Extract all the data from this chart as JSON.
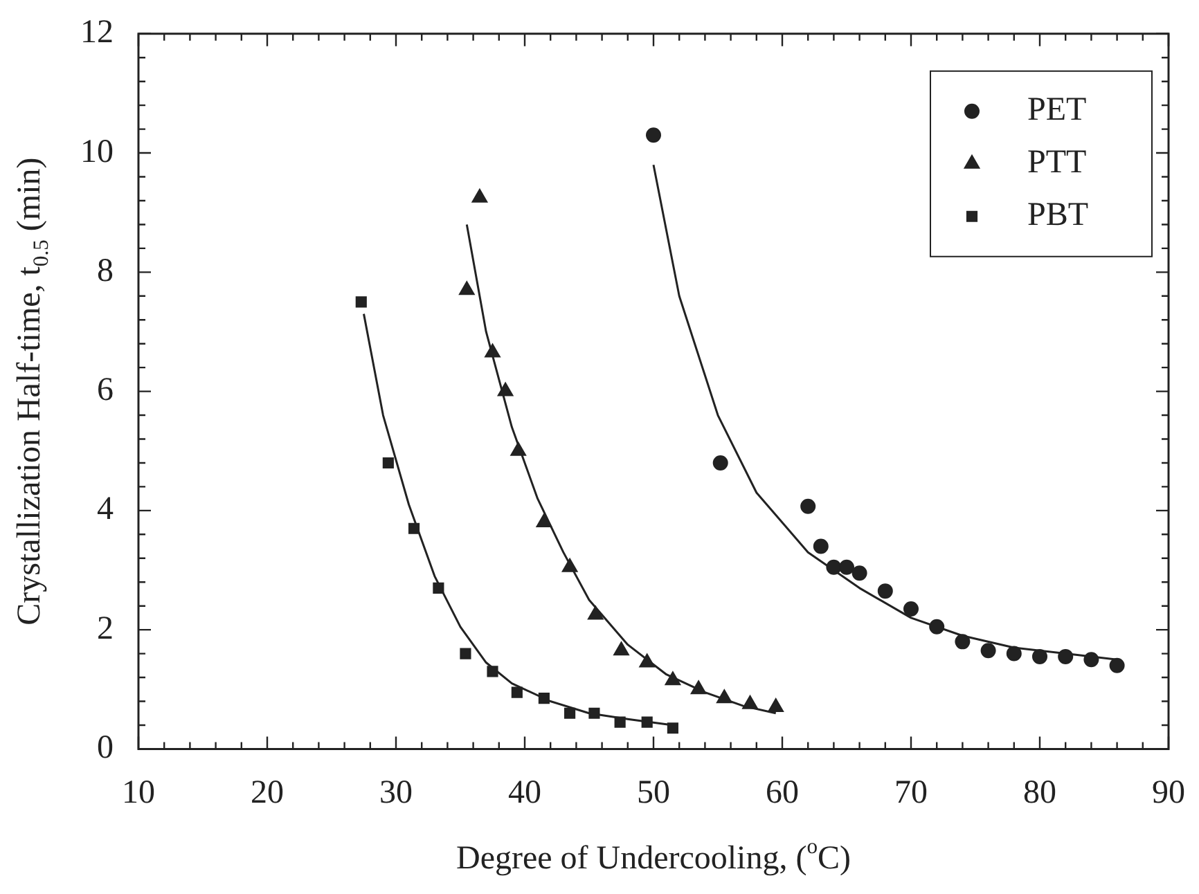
{
  "chart_data": {
    "type": "scatter",
    "xlabel": "Degree of Undercooling, ($^{o}$C)",
    "ylabel": "Crystallization Half-time, t$_{0.5}$ (min)",
    "xlim": [
      10,
      90
    ],
    "ylim": [
      0,
      12
    ],
    "xticks": [
      10,
      {
        "value": 12,
        "label": null
      },
      {
        "value": 14,
        "label": null
      },
      {
        "value": 16,
        "label": null
      },
      {
        "value": 18,
        "label": null
      },
      20,
      {
        "value": 22,
        "label": null
      },
      {
        "value": 24,
        "label": null
      },
      {
        "value": 26,
        "label": null
      },
      {
        "value": 28,
        "label": null
      },
      30,
      {
        "value": 32,
        "label": null
      },
      {
        "value": 34,
        "label": null
      },
      {
        "value": 36,
        "label": null
      },
      {
        "value": 38,
        "label": null
      },
      40,
      {
        "value": 42,
        "label": null
      },
      {
        "value": 44,
        "label": null
      },
      {
        "value": 46,
        "label": null
      },
      {
        "value": 48,
        "label": null
      },
      50,
      {
        "value": 52,
        "label": null
      },
      {
        "value": 54,
        "label": null
      },
      {
        "value": 56,
        "label": null
      },
      {
        "value": 58,
        "label": null
      },
      60,
      {
        "value": 62,
        "label": null
      },
      {
        "value": 64,
        "label": null
      },
      {
        "value": 66,
        "label": null
      },
      {
        "value": 68,
        "label": null
      },
      70,
      {
        "value": 72,
        "label": null
      },
      {
        "value": 74,
        "label": null
      },
      {
        "value": 76,
        "label": null
      },
      {
        "value": 78,
        "label": null
      },
      80,
      {
        "value": 82,
        "label": null
      },
      {
        "value": 84,
        "label": null
      },
      {
        "value": 86,
        "label": null
      },
      {
        "value": 88,
        "label": null
      },
      90
    ],
    "yticks": [
      0,
      {
        "value": 0.4,
        "label": null
      },
      {
        "value": 0.8,
        "label": null
      },
      {
        "value": 1.2,
        "label": null
      },
      {
        "value": 1.6,
        "label": null
      },
      2,
      {
        "value": 2.4,
        "label": null
      },
      {
        "value": 2.8,
        "label": null
      },
      {
        "value": 3.2,
        "label": null
      },
      {
        "value": 3.6,
        "label": null
      },
      4,
      {
        "value": 4.4,
        "label": null
      },
      {
        "value": 4.8,
        "label": null
      },
      {
        "value": 5.2,
        "label": null
      },
      {
        "value": 5.6,
        "label": null
      },
      6,
      {
        "value": 6.4,
        "label": null
      },
      {
        "value": 6.8,
        "label": null
      },
      {
        "value": 7.2,
        "label": null
      },
      {
        "value": 7.6,
        "label": null
      },
      8,
      {
        "value": 8.4,
        "label": null
      },
      {
        "value": 8.8,
        "label": null
      },
      {
        "value": 9.2,
        "label": null
      },
      {
        "value": 9.6,
        "label": null
      },
      10,
      {
        "value": 10.4,
        "label": null
      },
      {
        "value": 10.8,
        "label": null
      },
      {
        "value": 11.2,
        "label": null
      },
      {
        "value": 11.6,
        "label": null
      },
      12
    ],
    "grid": false,
    "legend": "top right",
    "series": [
      {
        "name": "PET",
        "color": "#222222",
        "marker": "circle",
        "x": [
          50,
          55.2,
          62,
          63,
          64,
          65,
          66,
          68,
          70,
          72,
          74,
          76,
          78,
          80,
          82,
          84,
          86
        ],
        "values": [
          10.3,
          4.8,
          4.07,
          3.4,
          3.05,
          3.05,
          2.95,
          2.65,
          2.35,
          2.05,
          1.8,
          1.65,
          1.6,
          1.55,
          1.55,
          1.5,
          1.4
        ]
      },
      {
        "name": "PTT",
        "color": "#222222",
        "marker": "triangle",
        "x": [
          35.5,
          36.5,
          37.5,
          38.5,
          39.5,
          41.5,
          43.5,
          45.5,
          47.5,
          49.5,
          51.5,
          53.5,
          55.5,
          57.5,
          59.5
        ],
        "values": [
          7.7,
          9.25,
          6.65,
          6.0,
          5.0,
          3.8,
          3.05,
          2.25,
          1.65,
          1.45,
          1.15,
          1.0,
          0.85,
          0.75,
          0.7
        ]
      },
      {
        "name": "PBT",
        "color": "#222222",
        "marker": "square",
        "x": [
          27.3,
          29.4,
          31.4,
          33.3,
          35.4,
          37.5,
          39.4,
          41.5,
          43.5,
          45.4,
          47.4,
          49.5,
          51.5
        ],
        "values": [
          7.5,
          4.8,
          3.7,
          2.7,
          1.6,
          1.3,
          0.95,
          0.85,
          0.6,
          0.6,
          0.45,
          0.45,
          0.35
        ]
      },
      {
        "type": "line",
        "color": "#222222",
        "marker": "none",
        "x": [
          50,
          52,
          55,
          58,
          62,
          66,
          70,
          74,
          78,
          82,
          86
        ],
        "values": [
          9.8,
          7.6,
          5.6,
          4.3,
          3.3,
          2.7,
          2.2,
          1.9,
          1.7,
          1.6,
          1.5
        ]
      },
      {
        "type": "line",
        "color": "#222222",
        "marker": "none",
        "x": [
          35.5,
          37,
          39,
          41,
          43,
          45,
          48,
          51,
          54,
          57,
          59.5
        ],
        "values": [
          8.8,
          7.0,
          5.4,
          4.2,
          3.3,
          2.5,
          1.75,
          1.25,
          0.95,
          0.72,
          0.6
        ]
      },
      {
        "type": "line",
        "color": "#222222",
        "marker": "none",
        "x": [
          27.5,
          29,
          31,
          33,
          35,
          37,
          39,
          42,
          45,
          48,
          51.5
        ],
        "values": [
          7.3,
          5.6,
          4.1,
          2.9,
          2.05,
          1.45,
          1.1,
          0.8,
          0.6,
          0.5,
          0.4
        ]
      }
    ]
  }
}
